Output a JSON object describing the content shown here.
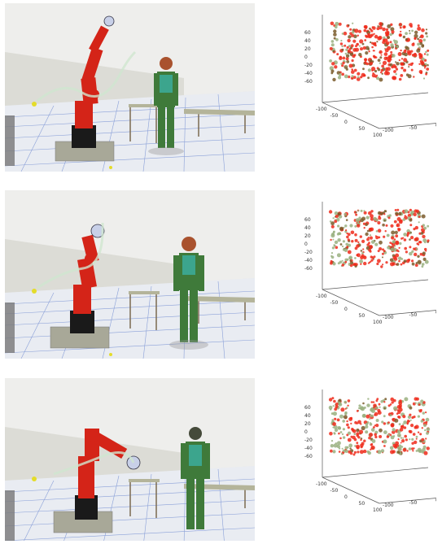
{
  "panels": [
    {
      "id": "top",
      "plot": {
        "z_ticks": [
          "60",
          "40",
          "20",
          "0",
          "-20",
          "-40",
          "-60"
        ],
        "x_ticks": [
          "-100",
          "-50",
          "0",
          "50",
          "100"
        ],
        "y_ticks": [
          "-100",
          "-50",
          "0",
          "50",
          "100"
        ]
      }
    },
    {
      "id": "middle",
      "plot": {
        "z_ticks": [
          "60",
          "40",
          "20",
          "0",
          "-20",
          "-40",
          "-60"
        ],
        "x_ticks": [
          "-100",
          "-50",
          "0",
          "50",
          "100"
        ],
        "y_ticks": [
          "-100",
          "-50",
          "0",
          "50",
          "100"
        ]
      }
    },
    {
      "id": "bottom",
      "plot": {
        "z_ticks": [
          "60",
          "40",
          "20",
          "0",
          "-20",
          "-40",
          "-60"
        ],
        "x_ticks": [
          "-100",
          "-50",
          "0",
          "50",
          "100"
        ],
        "y_ticks": [
          "-100",
          "-50",
          "0",
          "50",
          "100"
        ]
      }
    }
  ],
  "colors": {
    "robot": "#d42418",
    "robot_base": "#1a1a1a",
    "pedestal": "#a8a898",
    "human_body": "#3f7a3a",
    "human_teal": "#3cb8b0",
    "human_head": "#a9522e",
    "floor": "#e9ecf2",
    "grid": "#8aa0d8",
    "wall": "#e7e7e3",
    "table": "#b4b49a",
    "points_red": "#ee2a1a",
    "points_brown": "#7a5a2a",
    "points_green": "#9ab080"
  }
}
